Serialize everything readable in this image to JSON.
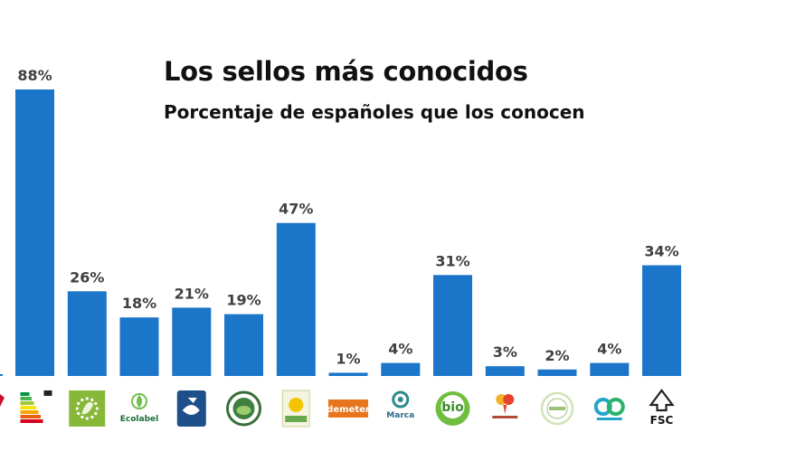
{
  "chart_data": {
    "type": "bar",
    "title": "Los sellos más conocidos",
    "subtitle": "Porcentaje de españoles que los conocen",
    "ylim": [
      0,
      100
    ],
    "grid": false,
    "bar_color": "#1b75c9",
    "label_color": "#404040",
    "categories": [
      "energy-label-logo",
      "eu-organic-leaf-logo",
      "eu-ecolabel-logo",
      "msc-fish-logo",
      "rainforest-alliance-frog-logo",
      "sun-label-logo",
      "demeter-logo",
      "marca-logo",
      "bio-logo",
      "fruit-label-logo",
      "circle-seal-logo",
      "recycling-arrows-logo",
      "fsc-tree-logo"
    ],
    "values": [
      88,
      26,
      18,
      21,
      19,
      47,
      1,
      4,
      31,
      3,
      2,
      4,
      34
    ],
    "data_labels": [
      "88%",
      "26%",
      "18%",
      "21%",
      "19%",
      "47%",
      "1%",
      "4%",
      "31%",
      "3%",
      "2%",
      "4%",
      "34%"
    ],
    "logo_texts": {
      "eu-ecolabel-logo": "Ecolabel",
      "demeter-logo": "demeter",
      "marca-logo": "Marca",
      "bio-logo": "bio",
      "fsc-tree-logo": "FSC"
    }
  }
}
